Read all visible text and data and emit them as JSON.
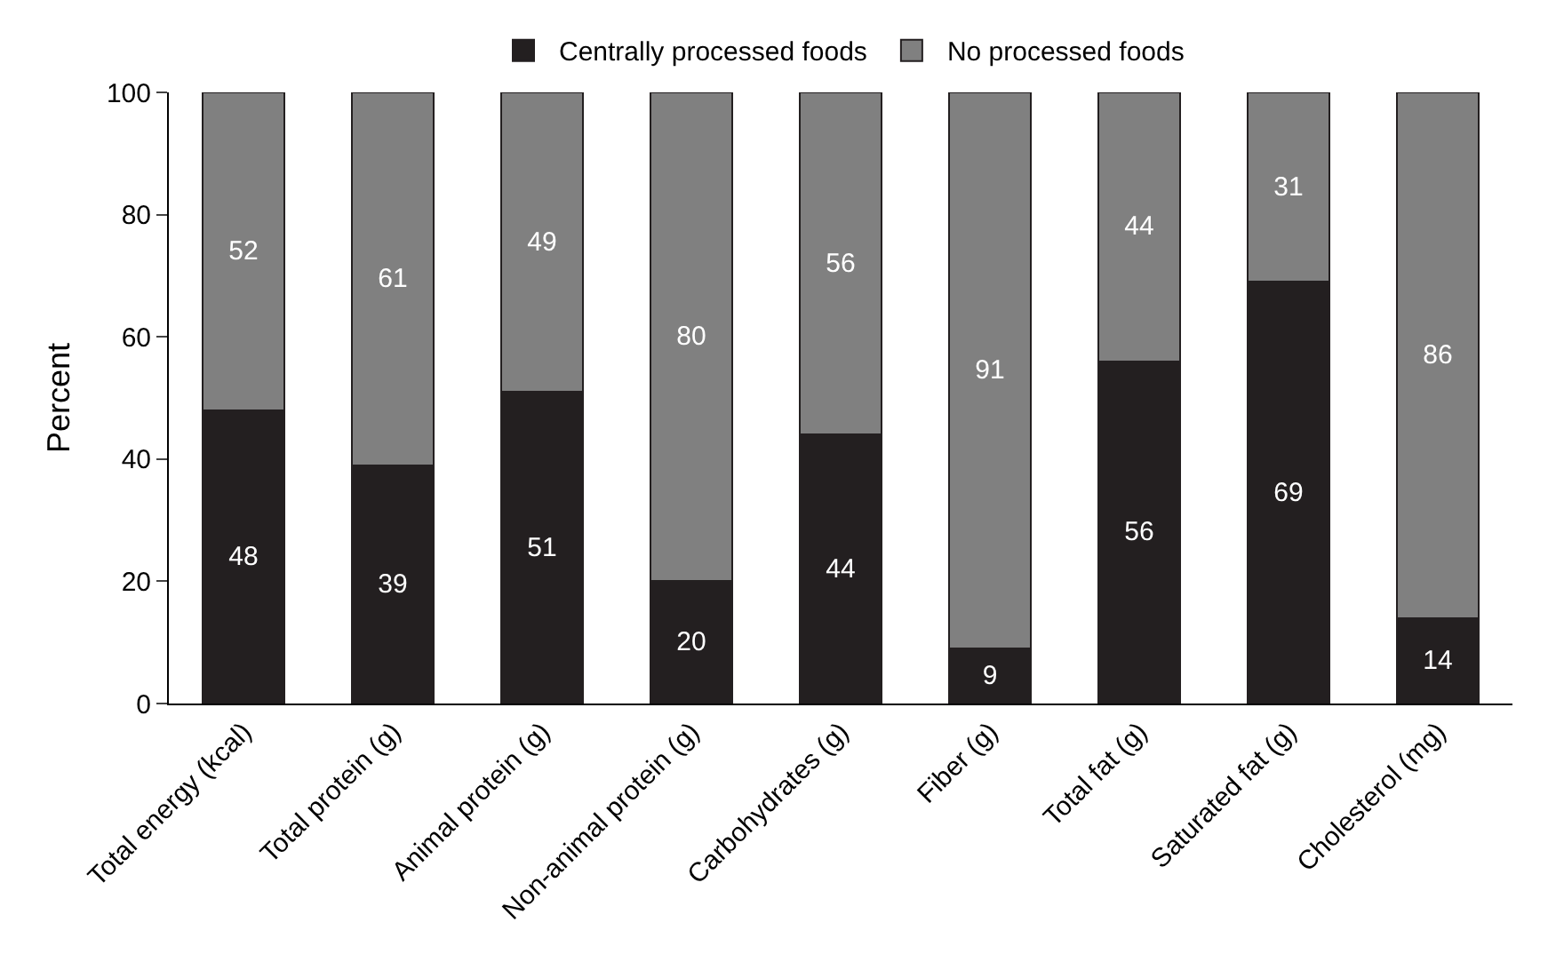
{
  "chart_data": {
    "type": "bar",
    "stacked": true,
    "ylabel": "Percent",
    "categories": [
      "Total energy (kcal)",
      "Total protein (g)",
      "Animal protein (g)",
      "Non-animal protein (g)",
      "Carbohydrates (g)",
      "Fiber (g)",
      "Total fat (g)",
      "Saturated fat (g)",
      "Cholesterol (mg)"
    ],
    "series": [
      {
        "name": "Centrally processed foods",
        "color": "#231f20",
        "values": [
          48,
          39,
          51,
          20,
          44,
          9,
          56,
          69,
          14
        ]
      },
      {
        "name": "No processed foods",
        "color": "#808080",
        "values": [
          52,
          61,
          49,
          80,
          56,
          91,
          44,
          31,
          86
        ]
      }
    ],
    "ylim": [
      0,
      100
    ],
    "yticks": [
      0,
      20,
      40,
      60,
      80,
      100
    ],
    "grid": false,
    "legend": "top",
    "data_labels": true
  }
}
